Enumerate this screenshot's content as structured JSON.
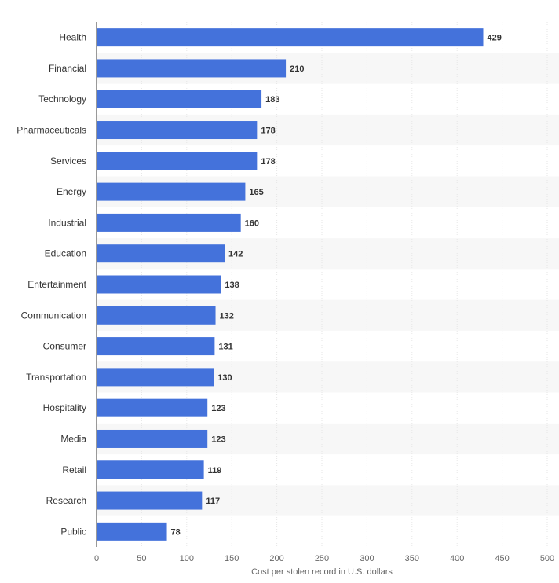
{
  "chart_data": {
    "type": "bar",
    "orientation": "horizontal",
    "categories": [
      "Health",
      "Financial",
      "Technology",
      "Pharmaceuticals",
      "Services",
      "Energy",
      "Industrial",
      "Education",
      "Entertainment",
      "Communication",
      "Consumer",
      "Transportation",
      "Hospitality",
      "Media",
      "Retail",
      "Research",
      "Public"
    ],
    "values": [
      429,
      210,
      183,
      178,
      178,
      165,
      160,
      142,
      138,
      132,
      131,
      130,
      123,
      123,
      119,
      117,
      78
    ],
    "value_labels": [
      "429",
      "210",
      "183",
      "178",
      "178",
      "165",
      "160",
      "142",
      "138",
      "132",
      "131",
      "130",
      "123",
      "123",
      "119",
      "117",
      "78"
    ],
    "xlabel": "Cost per stolen record in U.S. dollars",
    "ylabel": "",
    "xlim": [
      0,
      500
    ],
    "xticks": [
      0,
      50,
      100,
      150,
      200,
      250,
      300,
      350,
      400,
      450,
      500
    ],
    "xtick_labels": [
      "0",
      "50",
      "100",
      "150",
      "200",
      "250",
      "300",
      "350",
      "400",
      "450",
      "500"
    ],
    "grid": true,
    "bar_color": "#4472db",
    "band_color": "#f7f7f7",
    "grid_color": "#e6e6e6"
  }
}
